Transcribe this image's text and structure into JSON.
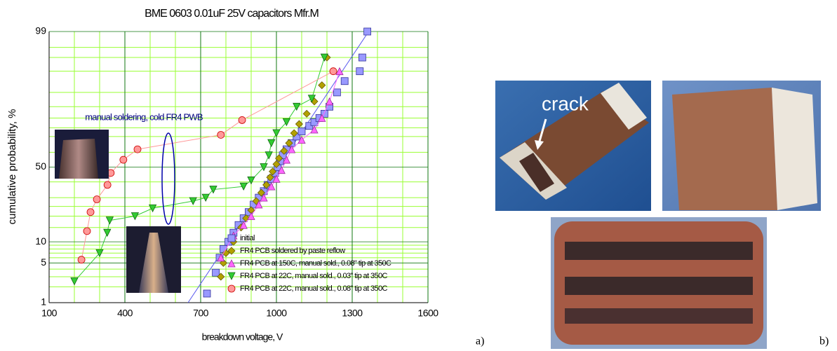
{
  "chart_data": {
    "type": "scatter",
    "title": "BME 0603 0.01uF 25V capacitors Mfr.M",
    "x_label": "breakdown voltage, V",
    "y_label": "cumulative probability, %",
    "yscale": "probit",
    "xlim": [
      100,
      1600
    ],
    "xticks": [
      100,
      400,
      700,
      1000,
      1300,
      1600
    ],
    "xgrid": [
      200,
      300,
      500,
      600,
      800,
      900,
      1100,
      1200,
      1400,
      1500
    ],
    "ylim": [
      1,
      99
    ],
    "yticks": [
      1,
      5,
      10,
      50,
      99
    ],
    "ygrid": [
      2,
      3,
      4,
      6,
      7,
      8,
      9,
      15,
      20,
      25,
      30,
      40,
      60,
      70,
      75,
      80,
      85,
      90,
      95,
      97,
      98
    ],
    "legend": "lower right",
    "annotation": "manual soldering, cold FR4 PWB",
    "fit_line": {
      "color": "#5555ee",
      "x": [
        650,
        1365
      ],
      "values": [
        1,
        99
      ]
    },
    "series": [
      {
        "name": "initial",
        "color": "#9999ff",
        "stroke": "#333399",
        "marker": "square",
        "line": false,
        "x": [
          725,
          760,
          775,
          790,
          810,
          830,
          850,
          870,
          890,
          910,
          930,
          950,
          965,
          980,
          995,
          1005,
          1015,
          1025,
          1040,
          1060,
          1080,
          1100,
          1130,
          1150,
          1170,
          1190,
          1210,
          1240,
          1270,
          1330,
          1340,
          1360
        ],
        "values": [
          1.5,
          3.5,
          6,
          8,
          10,
          13,
          16,
          19,
          22,
          26,
          30,
          34,
          38,
          42,
          46,
          50,
          54,
          58,
          62,
          66,
          70,
          73,
          76,
          78,
          80,
          82,
          85,
          90,
          93,
          95,
          97,
          99
        ]
      },
      {
        "name": "FR4 PCB soldered by paste reflow",
        "color": "#b3a100",
        "stroke": "#665c00",
        "marker": "diamond",
        "line": false,
        "x": [
          780,
          790,
          800,
          830,
          860,
          880,
          900,
          920,
          940,
          960,
          975,
          985,
          1000,
          1010,
          1030,
          1050,
          1070,
          1090,
          1120,
          1150,
          1180,
          1200
        ],
        "values": [
          3,
          5,
          7,
          10,
          15,
          19,
          23,
          28,
          33,
          38,
          43,
          47,
          52,
          56,
          61,
          66,
          72,
          77,
          82,
          87,
          92,
          97
        ]
      },
      {
        "name": "FR4 PCB at 150C, manual sold., 0.08\" tip at 350C",
        "color": "#ff66ff",
        "stroke": "#993399",
        "marker": "triangle",
        "line": true,
        "x": [
          780,
          830,
          870,
          900,
          930,
          950,
          980,
          1000,
          1020,
          1040,
          1060,
          1100,
          1150,
          1180,
          1210,
          1250
        ],
        "values": [
          6,
          12,
          16,
          20,
          26,
          30,
          37,
          42,
          48,
          55,
          62,
          68,
          74,
          80,
          87,
          95
        ]
      },
      {
        "name": "FR4 PCB at 22C, manual sold., 0.03\" tip at 350C",
        "color": "#33cc33",
        "stroke": "#116611",
        "marker": "triangle-down",
        "line": true,
        "x": [
          200,
          300,
          330,
          340,
          440,
          510,
          670,
          720,
          750,
          870,
          900,
          950,
          970,
          980,
          1000,
          1040,
          1080,
          1140,
          1190
        ],
        "values": [
          2.5,
          7,
          13,
          18,
          20,
          24,
          28,
          30,
          35,
          37,
          41,
          50,
          58,
          66,
          72,
          78,
          85,
          88,
          97
        ]
      },
      {
        "name": "FR4 PCB at 22C, manual sold., 0.08\" tip at 350C",
        "color": "#ff9999",
        "stroke": "#cc0000",
        "marker": "circle",
        "line": true,
        "x": [
          228,
          250,
          264,
          289,
          331,
          344,
          394,
          450,
          780,
          864,
          1225
        ],
        "values": [
          5.6,
          13.6,
          22,
          29,
          38,
          46,
          55,
          62,
          71,
          79,
          95
        ]
      }
    ]
  },
  "figure_labels": {
    "crack": "crack",
    "a": "a)",
    "b": "b)"
  }
}
